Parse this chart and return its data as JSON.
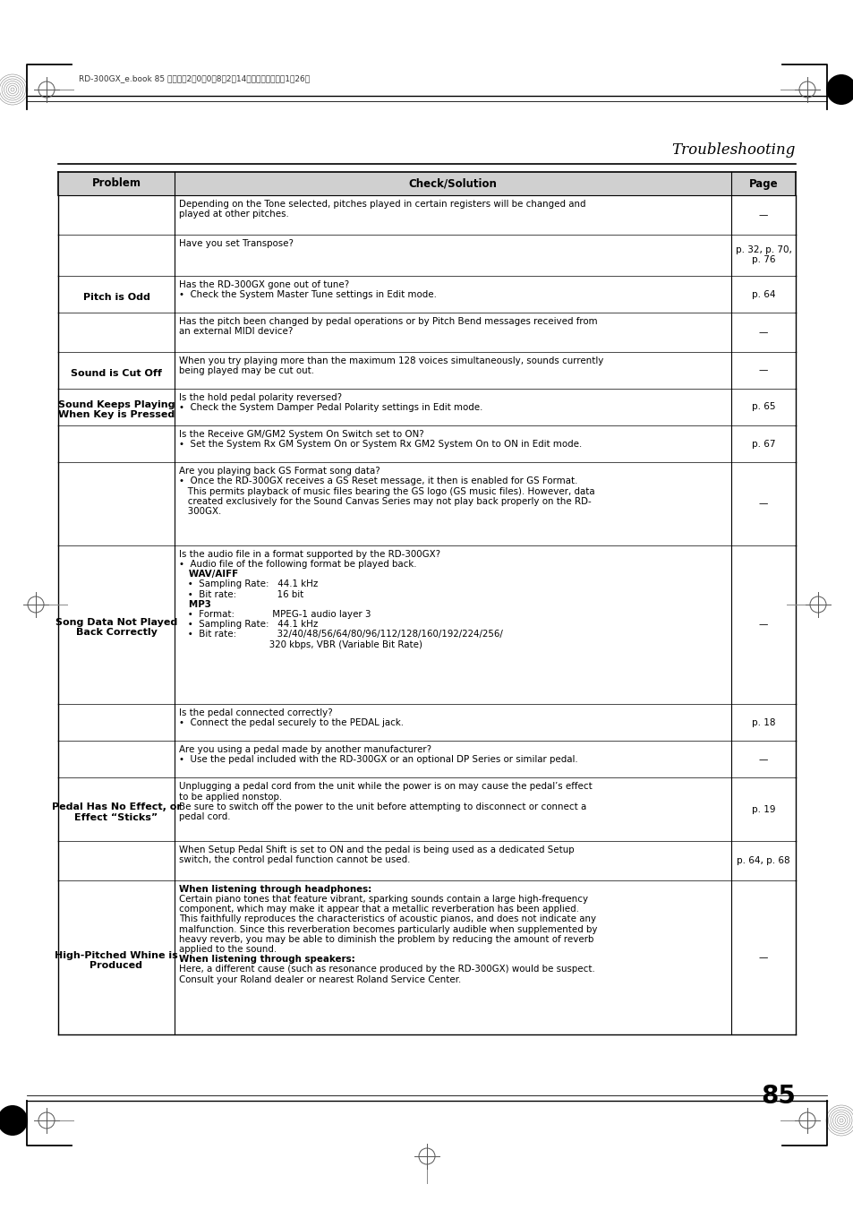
{
  "title": "Troubleshooting",
  "header_row": [
    "Problem",
    "Check/Solution",
    "Page"
  ],
  "page_number": "85",
  "top_bar_text": "RD-300GX_e.book 85 ページ　2　0　0　8年2月14日　木曜日　午後1時26分",
  "rows": [
    {
      "problem": "",
      "solution": [
        [
          "normal",
          "Depending on the Tone selected, pitches played in certain registers will be changed and"
        ],
        [
          "normal",
          "played at other pitches."
        ]
      ],
      "page": "—",
      "problem_bold": false
    },
    {
      "problem": "",
      "solution": [
        [
          "normal",
          "Have you set Transpose?"
        ]
      ],
      "page": "p. 32, p. 70,\np. 76",
      "problem_bold": false
    },
    {
      "problem": "Pitch is Odd",
      "solution": [
        [
          "normal",
          "Has the RD-300GX gone out of tune?"
        ],
        [
          "normal",
          "•  Check the System Master Tune settings in Edit mode."
        ]
      ],
      "page": "p. 64",
      "problem_bold": true
    },
    {
      "problem": "",
      "solution": [
        [
          "normal",
          "Has the pitch been changed by pedal operations or by Pitch Bend messages received from"
        ],
        [
          "normal",
          "an external MIDI device?"
        ]
      ],
      "page": "—",
      "problem_bold": false
    },
    {
      "problem": "Sound is Cut Off",
      "solution": [
        [
          "normal",
          "When you try playing more than the maximum 128 voices simultaneously, sounds currently"
        ],
        [
          "normal",
          "being played may be cut out."
        ]
      ],
      "page": "—",
      "problem_bold": true
    },
    {
      "problem": "Sound Keeps Playing\nWhen Key is Pressed",
      "solution": [
        [
          "normal",
          "Is the hold pedal polarity reversed?"
        ],
        [
          "normal",
          "•  Check the System Damper Pedal Polarity settings in Edit mode."
        ]
      ],
      "page": "p. 65",
      "problem_bold": true
    },
    {
      "problem": "",
      "solution": [
        [
          "normal",
          "Is the Receive GM/GM2 System On Switch set to ON?"
        ],
        [
          "normal",
          "•  Set the System Rx GM System On or System Rx GM2 System On to ON in Edit mode."
        ]
      ],
      "page": "p. 67",
      "problem_bold": false
    },
    {
      "problem": "",
      "solution": [
        [
          "normal",
          "Are you playing back GS Format song data?"
        ],
        [
          "normal",
          "•  Once the RD-300GX receives a GS Reset message, it then is enabled for GS Format."
        ],
        [
          "normal",
          "   This permits playback of music files bearing the GS logo (GS music files). However, data"
        ],
        [
          "normal",
          "   created exclusively for the Sound Canvas Series may not play back properly on the RD-"
        ],
        [
          "normal",
          "   300GX."
        ]
      ],
      "page": "—",
      "problem_bold": false
    },
    {
      "problem": "Song Data Not Played\nBack Correctly",
      "solution": [
        [
          "normal",
          "Is the audio file in a format supported by the RD-300GX?"
        ],
        [
          "normal",
          "•  Audio file of the following format be played back."
        ],
        [
          "bold",
          "   WAV/AIFF"
        ],
        [
          "normal",
          "   •  Sampling Rate:   44.1 kHz"
        ],
        [
          "normal",
          "   •  Bit rate:              16 bit"
        ],
        [
          "bold",
          "   MP3"
        ],
        [
          "normal",
          "   •  Format:             MPEG-1 audio layer 3"
        ],
        [
          "normal",
          "   •  Sampling Rate:   44.1 kHz"
        ],
        [
          "normal",
          "   •  Bit rate:              32/40/48/56/64/80/96/112/128/160/192/224/256/"
        ],
        [
          "normal",
          "                               320 kbps, VBR (Variable Bit Rate)"
        ]
      ],
      "page": "—",
      "problem_bold": true
    },
    {
      "problem": "",
      "solution": [
        [
          "normal",
          "Is the pedal connected correctly?"
        ],
        [
          "normal",
          "•  Connect the pedal securely to the PEDAL jack."
        ]
      ],
      "page": "p. 18",
      "problem_bold": false
    },
    {
      "problem": "",
      "solution": [
        [
          "normal",
          "Are you using a pedal made by another manufacturer?"
        ],
        [
          "normal",
          "•  Use the pedal included with the RD-300GX or an optional DP Series or similar pedal."
        ]
      ],
      "page": "—",
      "problem_bold": false
    },
    {
      "problem": "Pedal Has No Effect, or\nEffect “Sticks”",
      "solution": [
        [
          "normal",
          "Unplugging a pedal cord from the unit while the power is on may cause the pedal’s effect"
        ],
        [
          "normal",
          "to be applied nonstop."
        ],
        [
          "normal",
          "Be sure to switch off the power to the unit before attempting to disconnect or connect a"
        ],
        [
          "normal",
          "pedal cord."
        ]
      ],
      "page": "p. 19",
      "problem_bold": true
    },
    {
      "problem": "",
      "solution": [
        [
          "normal",
          "When Setup Pedal Shift is set to ON and the pedal is being used as a dedicated Setup"
        ],
        [
          "normal",
          "switch, the control pedal function cannot be used."
        ]
      ],
      "page": "p. 64, p. 68",
      "problem_bold": false
    },
    {
      "problem": "High-Pitched Whine is\nProduced",
      "solution": [
        [
          "bold",
          "When listening through headphones:"
        ],
        [
          "normal",
          "Certain piano tones that feature vibrant, sparking sounds contain a large high-frequency"
        ],
        [
          "normal",
          "component, which may make it appear that a metallic reverberation has been applied."
        ],
        [
          "normal",
          "This faithfully reproduces the characteristics of acoustic pianos, and does not indicate any"
        ],
        [
          "normal",
          "malfunction. Since this reverberation becomes particularly audible when supplemented by"
        ],
        [
          "normal",
          "heavy reverb, you may be able to diminish the problem by reducing the amount of reverb"
        ],
        [
          "normal",
          "applied to the sound."
        ],
        [
          "bold",
          "When listening through speakers:"
        ],
        [
          "normal",
          "Here, a different cause (such as resonance produced by the RD-300GX) would be suspect."
        ],
        [
          "normal",
          "Consult your Roland dealer or nearest Roland Service Center."
        ]
      ],
      "page": "—",
      "problem_bold": true
    }
  ]
}
